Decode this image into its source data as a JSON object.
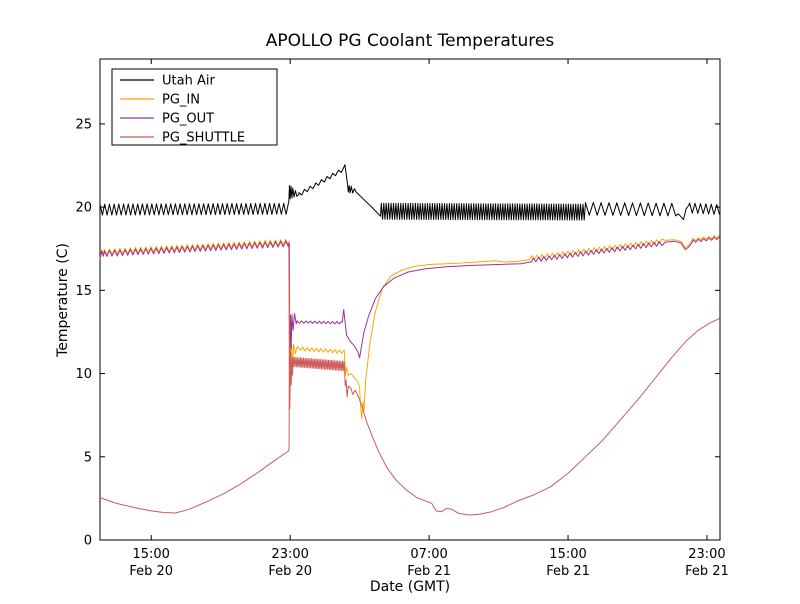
{
  "chart_data": {
    "type": "line",
    "title": "APOLLO PG Coolant Temperatures",
    "xlabel": "Date (GMT)",
    "ylabel": "Temperature (C)",
    "x_unit": "hours_since_Feb20_0000_GMT",
    "xlim": [
      12.05,
      47.75
    ],
    "ylim": [
      0,
      28.9
    ],
    "grid": false,
    "legend_position": "upper-left",
    "axis_color": "#000000",
    "xticks": [
      {
        "t": 15,
        "time": "15:00",
        "date": "Feb 20"
      },
      {
        "t": 23,
        "time": "23:00",
        "date": "Feb 20"
      },
      {
        "t": 31,
        "time": "07:00",
        "date": "Feb 21"
      },
      {
        "t": 39,
        "time": "15:00",
        "date": "Feb 21"
      },
      {
        "t": 47,
        "time": "23:00",
        "date": "Feb 21"
      }
    ],
    "yticks": [
      0,
      5,
      10,
      15,
      20,
      25
    ],
    "series": [
      {
        "name": "Utah Air",
        "color": "#000000",
        "segments": [
          {
            "zz": [
              12.05,
              22.9,
              19.85,
              19.9,
              0.33,
              0.27
            ]
          },
          {
            "ln": [
              [
                22.92,
                20.3
              ],
              [
                22.96,
                21.3
              ],
              [
                23.0,
                20.5
              ],
              [
                23.05,
                21.25
              ],
              [
                23.1,
                20.55
              ],
              [
                23.15,
                21.15
              ],
              [
                23.22,
                20.6
              ],
              [
                23.3,
                21.0
              ],
              [
                23.38,
                20.65
              ],
              [
                23.5,
                20.75
              ]
            ]
          },
          {
            "zz": [
              23.5,
              26.1,
              20.75,
              22.3,
              0.12,
              0.32
            ]
          },
          {
            "ln": [
              [
                26.15,
                22.55
              ],
              [
                26.3,
                21.4
              ],
              [
                26.35,
                20.9
              ],
              [
                26.4,
                21.3
              ],
              [
                26.45,
                20.85
              ],
              [
                26.52,
                21.25
              ],
              [
                26.6,
                20.85
              ],
              [
                26.7,
                21.1
              ],
              [
                26.8,
                20.9
              ],
              [
                27.2,
                20.5
              ],
              [
                27.7,
                20.0
              ],
              [
                28.2,
                19.45
              ]
            ]
          },
          {
            "zz": [
              28.25,
              40.0,
              19.75,
              19.7,
              0.48,
              0.14
            ]
          },
          {
            "zz": [
              40.0,
              45.2,
              19.9,
              19.85,
              0.38,
              0.45
            ]
          },
          {
            "ln": [
              [
                45.35,
                19.6
              ],
              [
                45.65,
                19.25
              ],
              [
                45.8,
                19.9
              ],
              [
                45.95,
                20.1
              ]
            ]
          },
          {
            "zz": [
              46.0,
              47.72,
              19.95,
              19.85,
              0.3,
              0.3
            ]
          }
        ]
      },
      {
        "name": "PG_IN",
        "color": "#FFA500",
        "segments": [
          {
            "ln": [
              [
                12.05,
                16.9
              ],
              [
                12.15,
                17.45
              ],
              [
                12.25,
                17.1
              ]
            ]
          },
          {
            "zz": [
              12.3,
              22.9,
              17.3,
              17.9,
              0.17,
              0.3
            ]
          },
          {
            "ln": [
              [
                22.93,
                17.95
              ],
              [
                22.96,
                9.6
              ],
              [
                23.0,
                11.9
              ],
              [
                23.04,
                9.9
              ],
              [
                23.08,
                11.7
              ],
              [
                23.13,
                10.3
              ],
              [
                23.2,
                11.75
              ],
              [
                23.3,
                11.2
              ],
              [
                23.4,
                11.6
              ]
            ]
          },
          {
            "zz": [
              23.45,
              26.1,
              11.5,
              11.3,
              0.1,
              0.26
            ]
          },
          {
            "ln": [
              [
                26.13,
                11.3
              ],
              [
                26.18,
                9.9
              ],
              [
                26.25,
                10.4
              ],
              [
                26.35,
                9.9
              ],
              [
                26.5,
                10.0
              ],
              [
                26.7,
                9.75
              ],
              [
                26.9,
                9.5
              ],
              [
                27.0,
                9.2
              ],
              [
                27.05,
                8.1
              ],
              [
                27.12,
                7.3
              ],
              [
                27.2,
                8.3
              ],
              [
                27.25,
                7.8
              ],
              [
                27.35,
                9.6
              ],
              [
                27.6,
                11.9
              ],
              [
                27.9,
                13.7
              ],
              [
                28.3,
                15.1
              ],
              [
                28.8,
                15.85
              ],
              [
                29.4,
                16.2
              ],
              [
                30.2,
                16.45
              ],
              [
                31.0,
                16.55
              ],
              [
                32.0,
                16.6
              ],
              [
                33.0,
                16.65
              ],
              [
                34.0,
                16.72
              ],
              [
                34.8,
                16.78
              ],
              [
                35.4,
                16.7
              ],
              [
                36.2,
                16.75
              ],
              [
                36.8,
                16.85
              ]
            ]
          },
          {
            "zz": [
              36.9,
              44.4,
              16.95,
              17.95,
              0.13,
              0.3
            ]
          },
          {
            "ln": [
              [
                44.6,
                18.0
              ],
              [
                45.1,
                18.05
              ],
              [
                45.5,
                17.95
              ],
              [
                45.75,
                17.55
              ],
              [
                45.95,
                17.7
              ],
              [
                46.15,
                18.0
              ]
            ]
          },
          {
            "zz": [
              46.2,
              47.72,
              18.05,
              18.25,
              0.08,
              0.3
            ]
          }
        ]
      },
      {
        "name": "PG_OUT",
        "color": "#993399",
        "segments": [
          {
            "ln": [
              [
                12.05,
                16.8
              ],
              [
                12.15,
                17.35
              ],
              [
                12.25,
                17.05
              ]
            ]
          },
          {
            "zz": [
              12.3,
              22.9,
              17.2,
              17.8,
              0.17,
              0.3
            ]
          },
          {
            "ln": [
              [
                22.93,
                17.85
              ],
              [
                22.97,
                10.6
              ],
              [
                23.02,
                13.5
              ],
              [
                23.06,
                11.5
              ],
              [
                23.1,
                13.55
              ],
              [
                23.17,
                12.6
              ],
              [
                23.25,
                13.6
              ],
              [
                23.35,
                13.0
              ]
            ]
          },
          {
            "zz": [
              23.4,
              25.95,
              13.1,
              13.05,
              0.07,
              0.26
            ]
          },
          {
            "ln": [
              [
                26.0,
                13.1
              ],
              [
                26.08,
                13.85
              ],
              [
                26.15,
                13.2
              ],
              [
                26.25,
                12.3
              ],
              [
                26.45,
                11.95
              ],
              [
                26.7,
                11.65
              ],
              [
                26.9,
                11.3
              ],
              [
                27.0,
                10.95
              ],
              [
                27.1,
                11.6
              ],
              [
                27.25,
                12.5
              ],
              [
                27.5,
                13.4
              ],
              [
                27.9,
                14.5
              ],
              [
                28.4,
                15.25
              ],
              [
                29.0,
                15.75
              ],
              [
                29.8,
                16.1
              ],
              [
                30.8,
                16.3
              ],
              [
                32.0,
                16.42
              ],
              [
                33.5,
                16.5
              ],
              [
                35.0,
                16.55
              ],
              [
                36.3,
                16.6
              ],
              [
                36.9,
                16.72
              ]
            ]
          },
          {
            "zz": [
              37.0,
              44.4,
              16.82,
              17.82,
              0.13,
              0.3
            ]
          },
          {
            "ln": [
              [
                44.6,
                17.9
              ],
              [
                45.1,
                17.95
              ],
              [
                45.5,
                17.85
              ],
              [
                45.75,
                17.45
              ],
              [
                45.95,
                17.6
              ],
              [
                46.15,
                17.9
              ]
            ]
          },
          {
            "zz": [
              46.2,
              47.72,
              17.95,
              18.15,
              0.08,
              0.3
            ]
          }
        ]
      },
      {
        "name": "PG_SHUTTLE",
        "color": "#CD5C5C",
        "segments": [
          {
            "ln": [
              [
                12.05,
                2.55
              ],
              [
                13.0,
                2.2
              ],
              [
                14.0,
                1.95
              ],
              [
                15.0,
                1.75
              ],
              [
                15.7,
                1.65
              ],
              [
                16.4,
                1.62
              ],
              [
                17.2,
                1.85
              ],
              [
                18.2,
                2.3
              ],
              [
                19.2,
                2.8
              ],
              [
                20.2,
                3.4
              ],
              [
                21.2,
                4.1
              ],
              [
                22.2,
                4.85
              ],
              [
                22.7,
                5.2
              ],
              [
                22.9,
                5.35
              ],
              [
                22.94,
                5.5
              ],
              [
                22.96,
                17.8
              ],
              [
                22.98,
                7.9
              ],
              [
                23.02,
                11.3
              ],
              [
                23.06,
                9.3
              ],
              [
                23.1,
                10.9
              ],
              [
                23.14,
                9.9
              ]
            ]
          },
          {
            "zz": [
              23.15,
              26.1,
              10.7,
              10.45,
              0.28,
              0.09
            ]
          },
          {
            "ln": [
              [
                26.13,
                10.4
              ],
              [
                26.17,
                9.25
              ],
              [
                26.22,
                9.6
              ],
              [
                26.28,
                8.6
              ],
              [
                26.35,
                9.25
              ],
              [
                26.5,
                9.1
              ],
              [
                26.6,
                8.75
              ],
              [
                26.75,
                9.0
              ],
              [
                26.95,
                8.55
              ],
              [
                27.15,
                8.0
              ],
              [
                27.4,
                7.1
              ],
              [
                27.7,
                6.3
              ],
              [
                28.1,
                5.3
              ],
              [
                28.6,
                4.3
              ],
              [
                29.1,
                3.6
              ],
              [
                29.7,
                3.0
              ],
              [
                30.3,
                2.55
              ],
              [
                30.9,
                2.3
              ],
              [
                31.15,
                2.2
              ],
              [
                31.4,
                1.75
              ],
              [
                31.7,
                1.7
              ],
              [
                32.0,
                1.9
              ],
              [
                32.3,
                1.85
              ],
              [
                32.7,
                1.6
              ],
              [
                33.3,
                1.5
              ],
              [
                33.9,
                1.55
              ],
              [
                34.6,
                1.7
              ],
              [
                35.3,
                1.95
              ],
              [
                36.1,
                2.35
              ],
              [
                37.0,
                2.7
              ],
              [
                38.0,
                3.2
              ],
              [
                39.0,
                4.0
              ],
              [
                40.0,
                5.0
              ],
              [
                41.0,
                6.0
              ],
              [
                42.0,
                7.2
              ],
              [
                43.0,
                8.4
              ],
              [
                44.0,
                9.7
              ],
              [
                45.0,
                11.0
              ],
              [
                45.8,
                11.95
              ],
              [
                46.5,
                12.6
              ],
              [
                47.1,
                13.0
              ],
              [
                47.5,
                13.2
              ],
              [
                47.72,
                13.3
              ]
            ]
          }
        ]
      }
    ],
    "legend": {
      "entries": [
        "Utah Air",
        "PG_IN",
        "PG_OUT",
        "PG_SHUTTLE"
      ],
      "border_color": "#000000",
      "background": "#ffffff"
    }
  }
}
